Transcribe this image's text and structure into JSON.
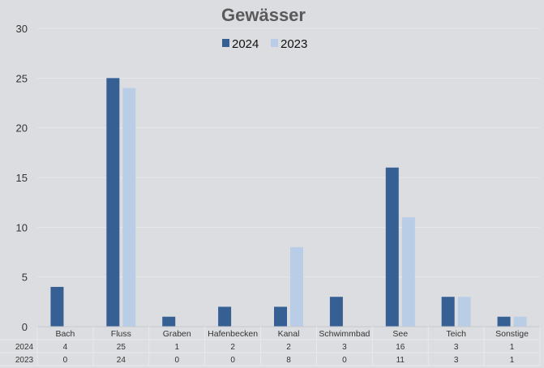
{
  "chart_data": {
    "type": "bar",
    "title": "Gewässer",
    "categories": [
      "Bach",
      "Fluss",
      "Graben",
      "Hafenbecken",
      "Kanal",
      "Schwimmbad",
      "See",
      "Teich",
      "Sonstige"
    ],
    "series": [
      {
        "name": "2024",
        "values": [
          4,
          25,
          1,
          2,
          2,
          3,
          16,
          3,
          1
        ],
        "color": "#365f94"
      },
      {
        "name": "2023",
        "values": [
          0,
          24,
          0,
          0,
          8,
          0,
          11,
          3,
          1
        ],
        "color": "#b9cde6"
      }
    ],
    "ylim": [
      0,
      30
    ],
    "yticks": [
      0,
      5,
      10,
      15,
      20,
      25,
      30
    ],
    "grid": true,
    "legend": "top-center",
    "data_table": true,
    "colors": {
      "background": "#dcdde0",
      "grid": "#e6e7ea",
      "title": "#5a5a5a"
    }
  }
}
